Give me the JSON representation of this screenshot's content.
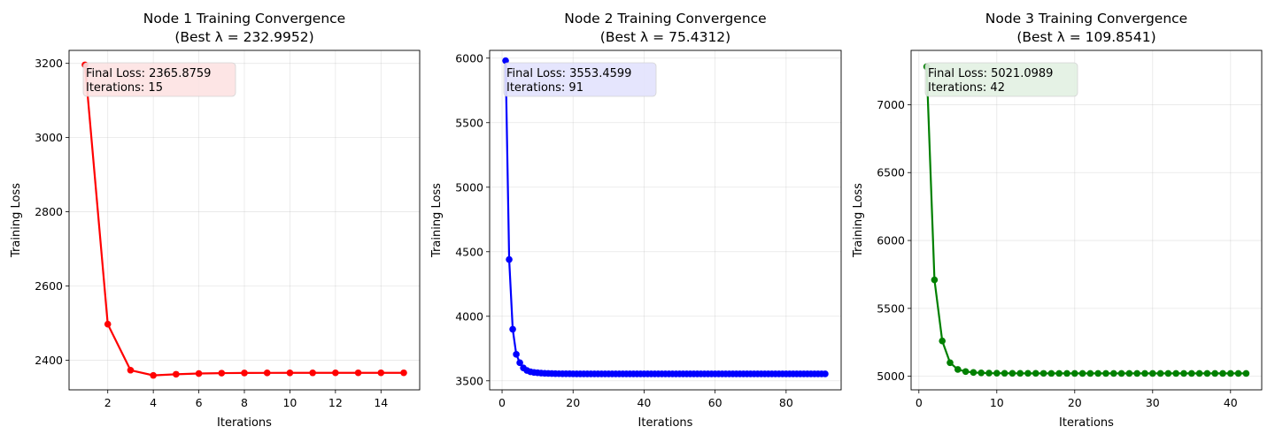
{
  "chart_data": [
    {
      "type": "line",
      "title": "Node 1 Training Convergence",
      "subtitle": "(Best λ = 232.9952)",
      "xlabel": "Iterations",
      "ylabel": "Training Loss",
      "color": "#ff0000",
      "annotation_bg": "#fde3e3",
      "annotation": [
        "Final Loss: 2365.8759",
        "Iterations: 15"
      ],
      "xlim": [
        0.3,
        15.7
      ],
      "ylim": [
        2320,
        3235
      ],
      "xticks": [
        2,
        4,
        6,
        8,
        10,
        12,
        14
      ],
      "yticks": [
        2400,
        2600,
        2800,
        3000,
        3200
      ],
      "grid": true,
      "x": [
        1,
        2,
        3,
        4,
        5,
        6,
        7,
        8,
        9,
        10,
        11,
        12,
        13,
        14,
        15
      ],
      "y": [
        3196,
        2497,
        2373,
        2359,
        2362,
        2364,
        2365,
        2365.5,
        2365.7,
        2365.8,
        2365.85,
        2365.87,
        2365.875,
        2365.876,
        2365.8759
      ]
    },
    {
      "type": "line",
      "title": "Node 2 Training Convergence",
      "subtitle": "(Best λ = 75.4312)",
      "xlabel": "Iterations",
      "ylabel": "Training Loss",
      "color": "#0000ff",
      "annotation_bg": "#e3e3fd",
      "annotation": [
        "Final Loss: 3553.4599",
        "Iterations: 91"
      ],
      "xlim": [
        -3.5,
        95.5
      ],
      "ylim": [
        3430,
        6060
      ],
      "xticks": [
        0,
        20,
        40,
        60,
        80
      ],
      "yticks": [
        3500,
        4000,
        4500,
        5000,
        5500,
        6000
      ],
      "grid": true,
      "x": [
        1,
        2,
        3,
        4,
        5,
        6,
        7,
        8,
        9,
        10,
        11,
        12,
        13,
        14,
        15,
        16,
        17,
        18,
        19,
        20,
        21,
        22,
        23,
        24,
        25,
        26,
        27,
        28,
        29,
        30,
        31,
        32,
        33,
        34,
        35,
        36,
        37,
        38,
        39,
        40,
        41,
        42,
        43,
        44,
        45,
        46,
        47,
        48,
        49,
        50,
        51,
        52,
        53,
        54,
        55,
        56,
        57,
        58,
        59,
        60,
        61,
        62,
        63,
        64,
        65,
        66,
        67,
        68,
        69,
        70,
        71,
        72,
        73,
        74,
        75,
        76,
        77,
        78,
        79,
        80,
        81,
        82,
        83,
        84,
        85,
        86,
        87,
        88,
        89,
        90,
        91
      ],
      "y": [
        5980,
        4440,
        3900,
        3705,
        3640,
        3600,
        3580,
        3570,
        3565,
        3562,
        3560,
        3558,
        3557,
        3556,
        3555.5,
        3555,
        3554.8,
        3554.5,
        3554.3,
        3554.1,
        3554,
        3553.9,
        3553.8,
        3553.75,
        3553.7,
        3553.65,
        3553.6,
        3553.58,
        3553.56,
        3553.54,
        3553.52,
        3553.51,
        3553.5,
        3553.5,
        3553.49,
        3553.49,
        3553.48,
        3553.48,
        3553.48,
        3553.47,
        3553.47,
        3553.47,
        3553.47,
        3553.47,
        3553.47,
        3553.46,
        3553.46,
        3553.46,
        3553.46,
        3553.46,
        3553.46,
        3553.46,
        3553.46,
        3553.46,
        3553.46,
        3553.46,
        3553.46,
        3553.46,
        3553.46,
        3553.46,
        3553.46,
        3553.46,
        3553.46,
        3553.46,
        3553.46,
        3553.46,
        3553.46,
        3553.46,
        3553.46,
        3553.46,
        3553.46,
        3553.46,
        3553.46,
        3553.46,
        3553.46,
        3553.46,
        3553.46,
        3553.46,
        3553.46,
        3553.46,
        3553.46,
        3553.46,
        3553.46,
        3553.46,
        3553.46,
        3553.46,
        3553.46,
        3553.46,
        3553.46,
        3553.46,
        3553.4599
      ]
    },
    {
      "type": "line",
      "title": "Node 3 Training Convergence",
      "subtitle": "(Best λ = 109.8541)",
      "xlabel": "Iterations",
      "ylabel": "Training Loss",
      "color": "#008000",
      "annotation_bg": "#e3f1e3",
      "annotation": [
        "Final Loss: 5021.0989",
        "Iterations: 42"
      ],
      "xlim": [
        -1,
        44
      ],
      "ylim": [
        4900,
        7400
      ],
      "xticks": [
        0,
        10,
        20,
        30,
        40
      ],
      "yticks": [
        5000,
        5500,
        6000,
        6500,
        7000
      ],
      "grid": true,
      "x": [
        1,
        2,
        3,
        4,
        5,
        6,
        7,
        8,
        9,
        10,
        11,
        12,
        13,
        14,
        15,
        16,
        17,
        18,
        19,
        20,
        21,
        22,
        23,
        24,
        25,
        26,
        27,
        28,
        29,
        30,
        31,
        32,
        33,
        34,
        35,
        36,
        37,
        38,
        39,
        40,
        41,
        42
      ],
      "y": [
        7280,
        5710,
        5260,
        5100,
        5050,
        5035,
        5028,
        5025,
        5023,
        5022.5,
        5022,
        5021.8,
        5021.6,
        5021.5,
        5021.4,
        5021.3,
        5021.25,
        5021.2,
        5021.18,
        5021.16,
        5021.15,
        5021.14,
        5021.13,
        5021.12,
        5021.12,
        5021.11,
        5021.11,
        5021.11,
        5021.1,
        5021.1,
        5021.1,
        5021.1,
        5021.1,
        5021.1,
        5021.1,
        5021.1,
        5021.1,
        5021.1,
        5021.1,
        5021.1,
        5021.1,
        5021.0989
      ]
    }
  ]
}
